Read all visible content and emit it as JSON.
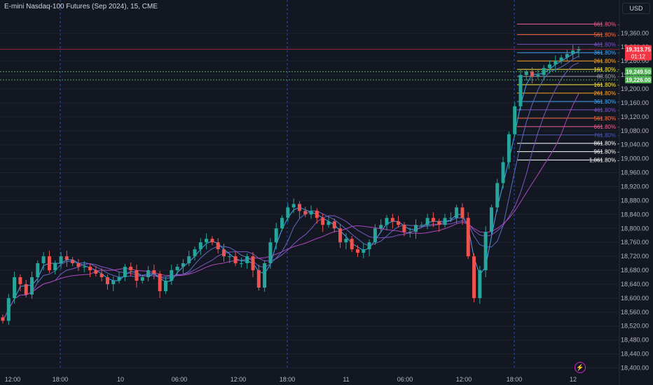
{
  "title": "E-mini Nasdaq-100 Futures (Sep 2024), 15, CME",
  "currency_button": "USD",
  "colors": {
    "background": "#131722",
    "up": "#26a69a",
    "down": "#ef5350",
    "grid": "#1e222d",
    "session_line": "#2962ff"
  },
  "icons": {
    "lightning": "lightning-icon"
  },
  "chart_data": {
    "type": "candlestick",
    "ylim": [
      18395,
      19455
    ],
    "y_ticks": [
      "19,360.00",
      "19,320.00",
      "19,280.00",
      "19,240.00",
      "19,200.00",
      "19,160.00",
      "19,120.00",
      "19,080.00",
      "19,040.00",
      "19,000.00",
      "18,960.00",
      "18,920.00",
      "18,880.00",
      "18,840.00",
      "18,800.00",
      "18,760.00",
      "18,720.00",
      "18,680.00",
      "18,640.00",
      "18,600.00",
      "18,560.00",
      "18,520.00",
      "18,480.00",
      "18,440.00",
      "18,400.00"
    ],
    "x_ticks": [
      "12:00",
      "18:00",
      "10",
      "06:00",
      "12:00",
      "18:00",
      "11",
      "06:00",
      "12:00",
      "18:00",
      "12"
    ],
    "price_labels": [
      {
        "text": "19,313.75",
        "sub": "01:12",
        "value": 19313.75,
        "color": "#f23645"
      },
      {
        "text": "19,249.50",
        "value": 19249.5,
        "color": "#4caf50"
      },
      {
        "text": "19,226.00",
        "value": 19226,
        "color": "#4caf50"
      }
    ],
    "fib_levels": [
      {
        "label": "661.80%",
        "value": 19386,
        "color": "#f06292"
      },
      {
        "label": "561.80%",
        "value": 19356,
        "color": "#ff7043"
      },
      {
        "label": "461.80%",
        "value": 19328,
        "color": "#7e57c2"
      },
      {
        "label": "361.80%",
        "value": 19304,
        "color": "#42a5f5"
      },
      {
        "label": "261.80%",
        "value": 19280,
        "color": "#ffa726"
      },
      {
        "label": "161.80%",
        "value": 19256,
        "color": "#ffeb3b"
      },
      {
        "label": "88.60%",
        "value": 19236,
        "color": "#9e9e9e"
      },
      {
        "label": "161.80%",
        "value": 19212,
        "color": "#ffeb3b"
      },
      {
        "label": "261.80%",
        "value": 19188,
        "color": "#ffa726"
      },
      {
        "label": "361.80%",
        "value": 19164,
        "color": "#42a5f5"
      },
      {
        "label": "461.80%",
        "value": 19140,
        "color": "#7e57c2"
      },
      {
        "label": "561.80%",
        "value": 19116,
        "color": "#ff7043"
      },
      {
        "label": "661.80%",
        "value": 19092,
        "color": "#f06292"
      },
      {
        "label": "761.80%",
        "value": 19068,
        "color": "#4d5bb0"
      },
      {
        "label": "861.80%",
        "value": 19044,
        "color": "#ffffff"
      },
      {
        "label": "961.80%",
        "value": 19020,
        "color": "#ffffff"
      },
      {
        "label": "1,061.80%",
        "value": 18996,
        "color": "#ffffff"
      }
    ],
    "closes": [
      18535,
      18600,
      18660,
      18640,
      18610,
      18660,
      18700,
      18720,
      18680,
      18700,
      18720,
      18710,
      18700,
      18690,
      18690,
      18680,
      18670,
      18660,
      18640,
      18650,
      18660,
      18690,
      18680,
      18650,
      18660,
      18680,
      18670,
      18620,
      18650,
      18680,
      18690,
      18700,
      18720,
      18740,
      18760,
      18770,
      18760,
      18740,
      18720,
      18720,
      18700,
      18700,
      18720,
      18680,
      18630,
      18700,
      18760,
      18800,
      18830,
      18860,
      18870,
      18850,
      18840,
      18850,
      18830,
      18810,
      18820,
      18800,
      18760,
      18770,
      18740,
      18730,
      18740,
      18760,
      18800,
      18810,
      18830,
      18820,
      18810,
      18790,
      18790,
      18810,
      18810,
      18830,
      18820,
      18810,
      18830,
      18830,
      18860,
      18830,
      18720,
      18600,
      18680,
      18790,
      18860,
      18930,
      18990,
      19070,
      19150,
      19240,
      19250,
      19236,
      19240,
      19260,
      19270,
      19280,
      19290,
      19300,
      19310,
      19314
    ],
    "x_open": [
      1,
      2,
      3,
      4,
      5,
      6,
      7,
      8,
      9,
      10,
      11,
      12,
      13,
      14,
      15,
      16,
      17,
      18,
      19,
      20,
      21,
      22,
      23,
      24,
      25,
      26,
      27,
      28,
      29,
      30,
      31,
      32,
      33,
      34,
      35,
      36,
      37,
      38,
      39,
      40,
      41,
      42,
      43,
      44,
      45,
      46,
      47,
      48,
      49,
      50,
      51,
      52,
      53,
      54,
      55,
      56,
      57,
      58,
      59,
      60,
      61,
      62,
      63,
      64,
      65,
      66,
      67,
      68,
      69,
      70,
      71,
      72,
      73,
      74,
      75,
      76,
      77,
      78,
      79,
      80,
      81,
      82,
      83,
      84,
      85,
      86,
      87,
      88,
      89,
      90,
      91,
      92,
      93,
      94,
      95,
      96,
      97,
      98,
      99,
      100
    ]
  }
}
